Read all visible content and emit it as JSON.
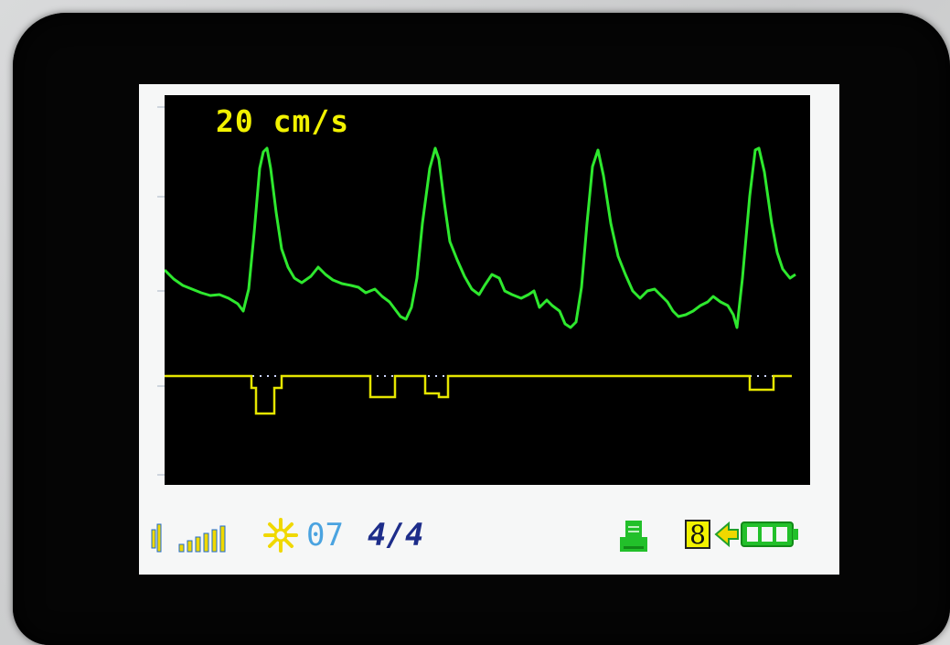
{
  "display": {
    "speed_label": "20 cm/s",
    "gain_value": "07",
    "page_indicator": "4/4",
    "battery_level": "8"
  },
  "icons": {
    "volume": "volume-icon",
    "signal": "signal-strength-icon",
    "gain": "sun-gain-icon",
    "printer": "printer-icon",
    "battery": "battery-icon",
    "charging": "charging-arrow-icon"
  },
  "colors": {
    "waveform": "#2ee82e",
    "doppler_trace": "#e6e600",
    "speed_text": "#f2f200",
    "gain_number": "#4aa3e0",
    "page_number": "#1d2d8a",
    "icons_green": "#22c02a"
  }
}
